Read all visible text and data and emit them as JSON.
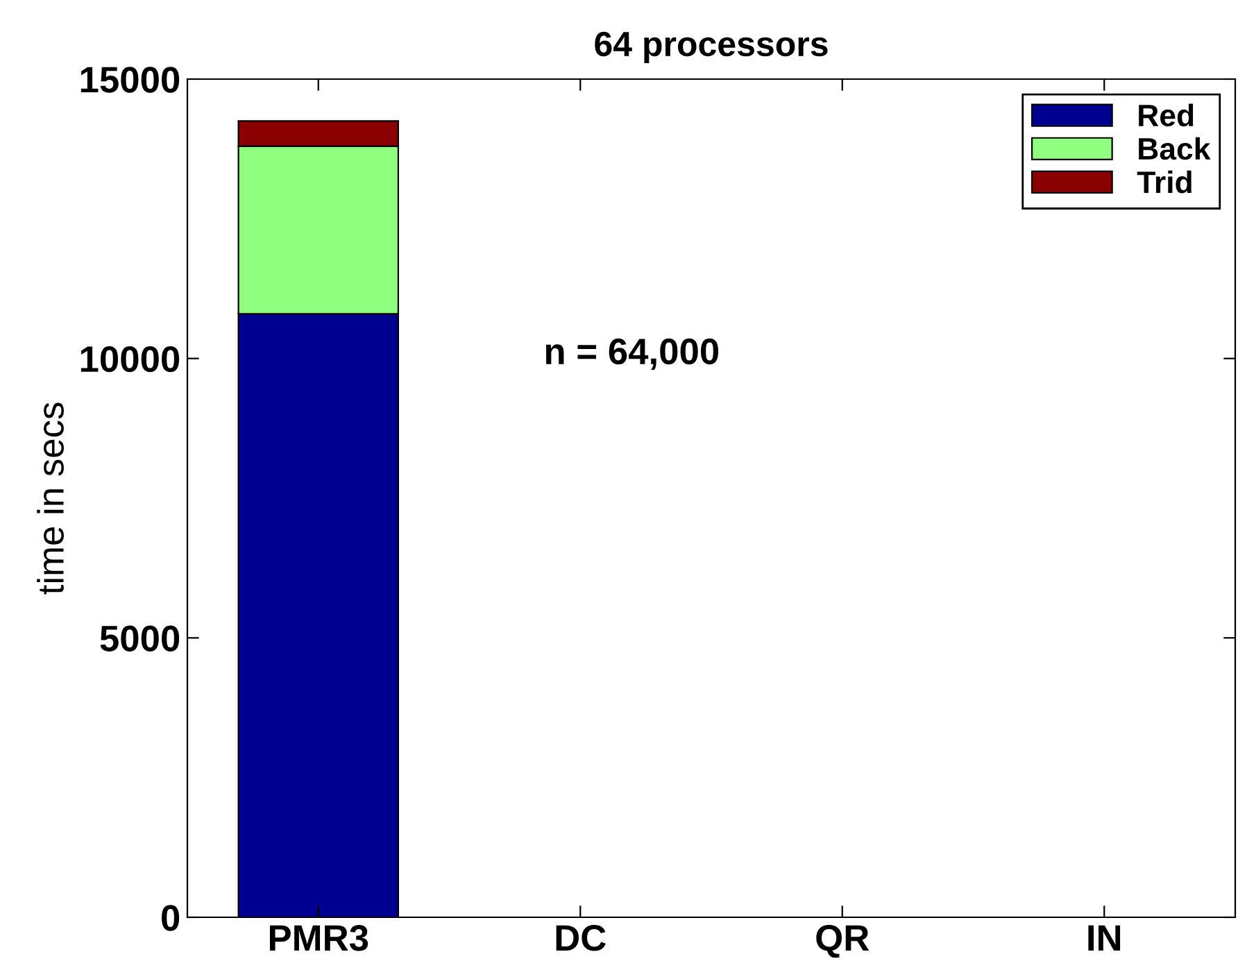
{
  "chart_data": {
    "type": "bar",
    "title": "64 processors",
    "ylabel": "time in secs",
    "categories": [
      "PMR3",
      "DC",
      "QR",
      "IN"
    ],
    "series": [
      {
        "name": "Red",
        "color": "#000090",
        "values": [
          10800,
          null,
          null,
          null
        ]
      },
      {
        "name": "Back",
        "color": "#90ff80",
        "values": [
          3000,
          null,
          null,
          null
        ]
      },
      {
        "name": "Trid",
        "color": "#8b0000",
        "values": [
          450,
          null,
          null,
          null
        ]
      }
    ],
    "stacked": true,
    "ylim": [
      0,
      15000
    ],
    "yticks": [
      0,
      5000,
      10000,
      15000
    ],
    "grid": false,
    "legend": "top right",
    "annotations": [
      "n = 64,000"
    ]
  }
}
